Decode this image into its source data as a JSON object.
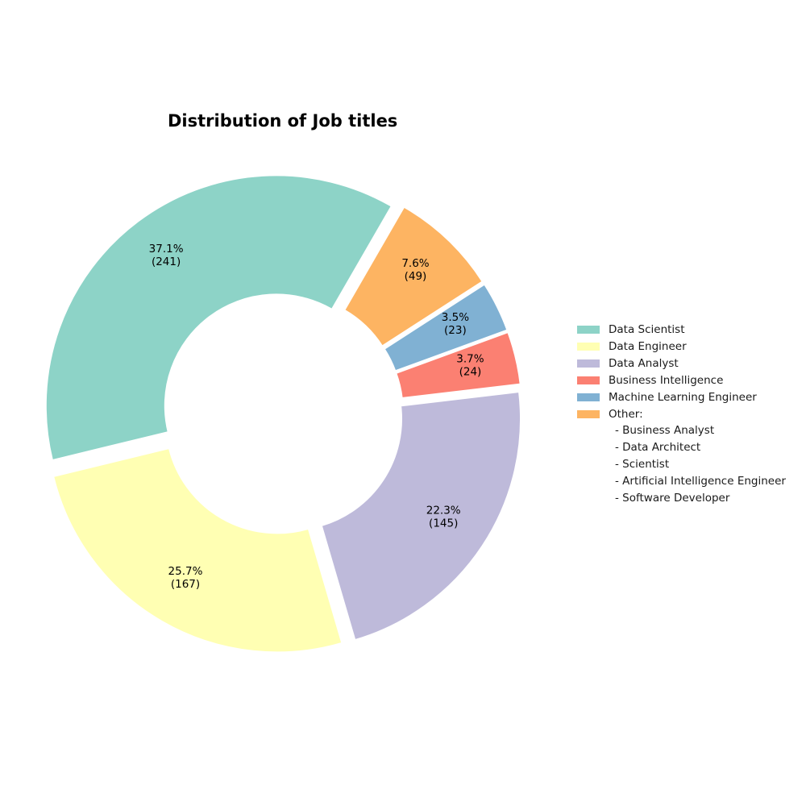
{
  "chart_data": {
    "type": "pie",
    "variant": "donut",
    "title": "Distribution of Job titles",
    "categories": [
      "Data Scientist",
      "Data Engineer",
      "Data Analyst",
      "Business Intelligence",
      "Machine Learning Engineer",
      "Other"
    ],
    "values": [
      241,
      167,
      145,
      24,
      23,
      49
    ],
    "percent_labels": [
      "37.1%",
      "25.7%",
      "22.3%",
      "3.7%",
      "3.5%",
      "7.6%"
    ],
    "count_labels": [
      "(241)",
      "(167)",
      "(145)",
      "(24)",
      "(23)",
      "(49)"
    ],
    "colors": [
      "#8dd3c7",
      "#ffffb3",
      "#bebada",
      "#fb8072",
      "#80b1d3",
      "#fdb462"
    ],
    "legend": {
      "position": "right",
      "entries": [
        "Data Scientist",
        "Data Engineer",
        "Data Analyst",
        "Business Intelligence",
        "Machine Learning Engineer",
        "Other:"
      ],
      "other_breakdown": [
        "- Business Analyst",
        "- Data Architect",
        "- Scientist",
        "- Artificial Intelligence Engineer",
        "- Software Developer"
      ]
    }
  }
}
